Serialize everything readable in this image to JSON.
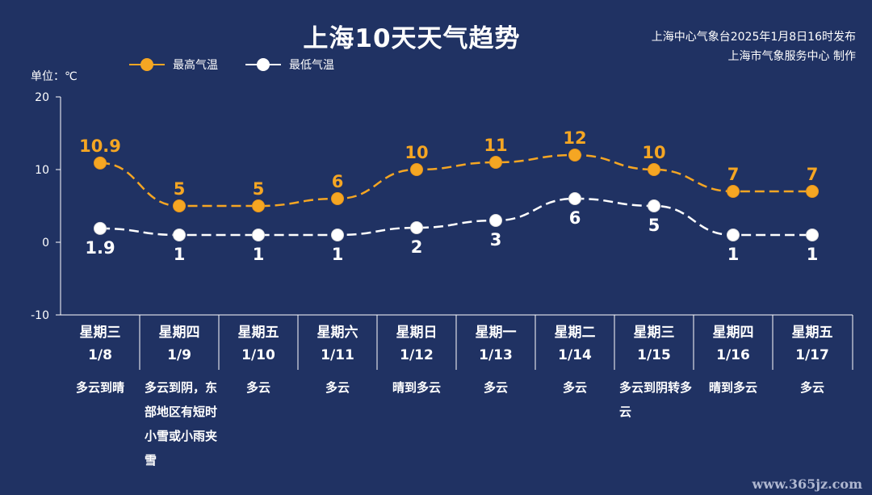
{
  "title": "上海10天天气趋势",
  "source_line1": "上海中心气象台2025年1月8日16时发布",
  "source_line2": "上海市气象服务中心 制作",
  "unit_label": "单位：℃",
  "legend": {
    "high": "最高气温",
    "low": "最低气温"
  },
  "colors": {
    "background": "#203263",
    "high": "#f5a623",
    "low": "#ffffff",
    "axis": "#ffffff"
  },
  "watermark": "www.365jz.com",
  "days": [
    {
      "weekday": "星期三",
      "date": "1/8",
      "weather": "多云到晴"
    },
    {
      "weekday": "星期四",
      "date": "1/9",
      "weather": "多云到阴，东部地区有短时小雪或小雨夹雪"
    },
    {
      "weekday": "星期五",
      "date": "1/10",
      "weather": "多云"
    },
    {
      "weekday": "星期六",
      "date": "1/11",
      "weather": "多云"
    },
    {
      "weekday": "星期日",
      "date": "1/12",
      "weather": "晴到多云"
    },
    {
      "weekday": "星期一",
      "date": "1/13",
      "weather": "多云"
    },
    {
      "weekday": "星期二",
      "date": "1/14",
      "weather": "多云"
    },
    {
      "weekday": "星期三",
      "date": "1/15",
      "weather": "多云到阴转多云"
    },
    {
      "weekday": "星期四",
      "date": "1/16",
      "weather": "晴到多云"
    },
    {
      "weekday": "星期五",
      "date": "1/17",
      "weather": "多云"
    }
  ],
  "chart_data": {
    "type": "line",
    "title": "上海10天天气趋势",
    "categories": [
      "1/8",
      "1/9",
      "1/10",
      "1/11",
      "1/12",
      "1/13",
      "1/14",
      "1/15",
      "1/16",
      "1/17"
    ],
    "series": [
      {
        "name": "最高气温",
        "values": [
          10.9,
          5,
          5,
          6,
          10,
          11,
          12,
          10,
          7,
          7
        ],
        "labels": [
          "10.9",
          "5",
          "5",
          "6",
          "10",
          "11",
          "12",
          "10",
          "7",
          "7"
        ]
      },
      {
        "name": "最低气温",
        "values": [
          1.9,
          1,
          1,
          1,
          2,
          3,
          6,
          5,
          1,
          1
        ],
        "labels": [
          "1.9",
          "1",
          "1",
          "1",
          "2",
          "3",
          "6",
          "5",
          "1",
          "1"
        ]
      }
    ],
    "ylabel": "单位：℃",
    "ylim": [
      -10,
      20
    ],
    "yticks": [
      -10,
      0,
      10,
      20
    ],
    "line_style": "dashed",
    "legend_position": "top-left",
    "grid": false
  }
}
